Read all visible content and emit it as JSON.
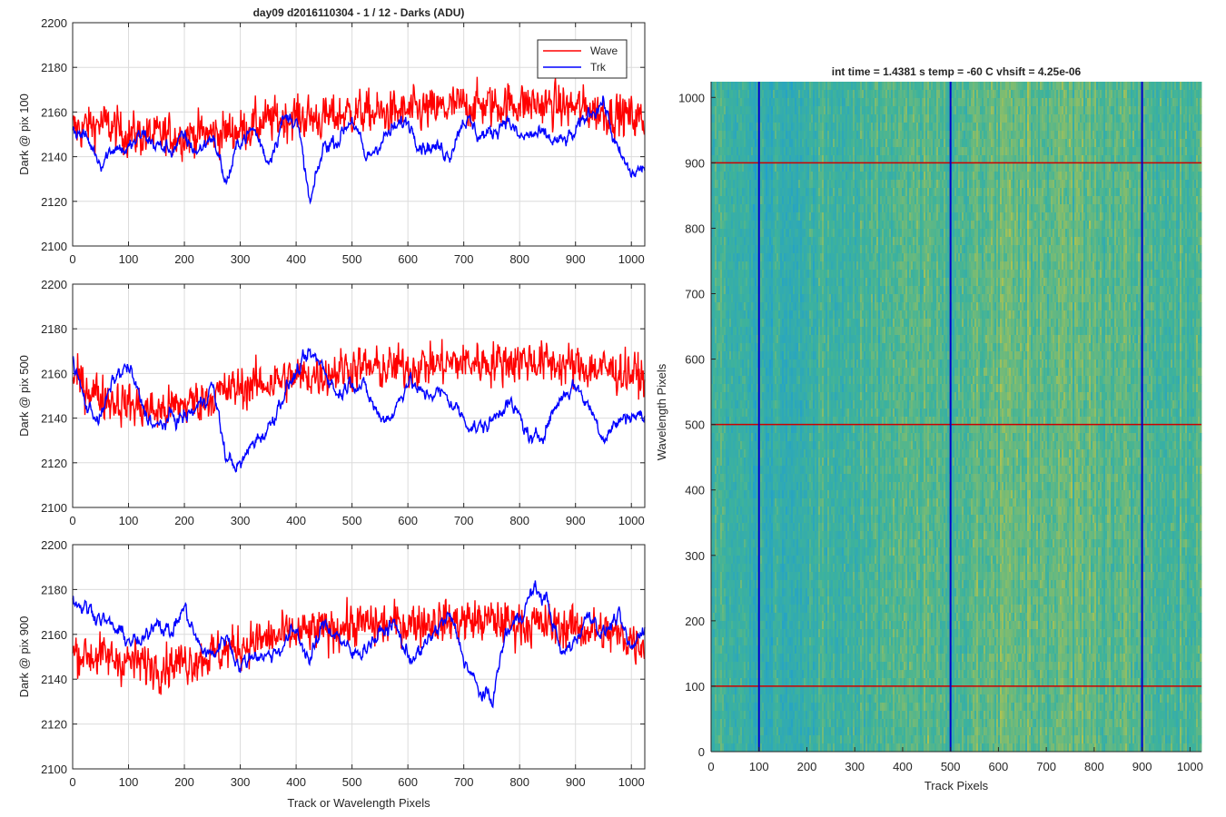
{
  "figure": {
    "title": "day09 d2016110304 - 1 / 12 - Darks (ADU)",
    "legend": {
      "position": "top-right",
      "entries": [
        {
          "name": "Wave",
          "color": "#ff0000"
        },
        {
          "name": "Trk",
          "color": "#0000ff"
        }
      ]
    }
  },
  "chart_data": [
    {
      "type": "line",
      "ylabel": "Dark @ pix 100",
      "xlabel": "",
      "xlim": [
        0,
        1024
      ],
      "ylim": [
        2100,
        2200
      ],
      "xticks": [
        "0",
        "100",
        "200",
        "300",
        "400",
        "500",
        "600",
        "700",
        "800",
        "900",
        "1000"
      ],
      "yticks": [
        "2100",
        "2120",
        "2140",
        "2160",
        "2180",
        "2200"
      ],
      "grid": true,
      "series": [
        {
          "name": "Wave",
          "color": "#ff0000",
          "x": [
            0,
            50,
            100,
            150,
            200,
            250,
            300,
            350,
            400,
            450,
            500,
            550,
            600,
            650,
            700,
            750,
            800,
            850,
            900,
            950,
            1000,
            1024
          ],
          "y": [
            2152,
            2155,
            2150,
            2149,
            2150,
            2150,
            2152,
            2156,
            2158,
            2157,
            2160,
            2159,
            2160,
            2161,
            2163,
            2163,
            2164,
            2163,
            2162,
            2160,
            2158,
            2156
          ]
        },
        {
          "name": "Trk",
          "color": "#0000ff",
          "x": [
            0,
            25,
            50,
            75,
            100,
            125,
            150,
            175,
            200,
            225,
            250,
            275,
            300,
            325,
            350,
            375,
            400,
            425,
            450,
            475,
            500,
            525,
            550,
            575,
            600,
            625,
            650,
            675,
            700,
            725,
            750,
            775,
            800,
            825,
            850,
            875,
            900,
            925,
            950,
            975,
            1000,
            1024
          ],
          "y": [
            2153,
            2148,
            2138,
            2145,
            2143,
            2150,
            2145,
            2143,
            2148,
            2142,
            2150,
            2128,
            2148,
            2152,
            2138,
            2156,
            2158,
            2118,
            2145,
            2148,
            2158,
            2138,
            2147,
            2152,
            2156,
            2146,
            2144,
            2142,
            2158,
            2150,
            2150,
            2158,
            2148,
            2150,
            2148,
            2146,
            2150,
            2160,
            2165,
            2142,
            2132,
            2135
          ]
        }
      ]
    },
    {
      "type": "line",
      "ylabel": "Dark @ pix 500",
      "xlabel": "",
      "xlim": [
        0,
        1024
      ],
      "ylim": [
        2100,
        2200
      ],
      "xticks": [
        "0",
        "100",
        "200",
        "300",
        "400",
        "500",
        "600",
        "700",
        "800",
        "900",
        "1000"
      ],
      "yticks": [
        "2100",
        "2120",
        "2140",
        "2160",
        "2180",
        "2200"
      ],
      "grid": true,
      "series": [
        {
          "name": "Wave",
          "color": "#ff0000",
          "x": [
            0,
            50,
            100,
            150,
            200,
            250,
            300,
            350,
            400,
            450,
            500,
            550,
            600,
            650,
            700,
            750,
            800,
            850,
            900,
            950,
            1000,
            1024
          ],
          "y": [
            2158,
            2150,
            2146,
            2143,
            2146,
            2150,
            2154,
            2156,
            2158,
            2160,
            2163,
            2162,
            2163,
            2164,
            2165,
            2165,
            2166,
            2165,
            2163,
            2162,
            2160,
            2158
          ]
        },
        {
          "name": "Trk",
          "color": "#0000ff",
          "x": [
            0,
            25,
            50,
            75,
            100,
            125,
            150,
            175,
            200,
            225,
            250,
            275,
            300,
            325,
            350,
            375,
            400,
            425,
            450,
            475,
            500,
            525,
            550,
            575,
            600,
            625,
            650,
            675,
            700,
            725,
            750,
            775,
            800,
            825,
            850,
            875,
            900,
            925,
            950,
            975,
            1000,
            1024
          ],
          "y": [
            2165,
            2145,
            2140,
            2158,
            2163,
            2145,
            2135,
            2140,
            2140,
            2145,
            2155,
            2122,
            2118,
            2130,
            2135,
            2150,
            2160,
            2168,
            2163,
            2150,
            2158,
            2152,
            2140,
            2142,
            2158,
            2150,
            2152,
            2148,
            2140,
            2135,
            2138,
            2148,
            2140,
            2128,
            2138,
            2150,
            2155,
            2145,
            2132,
            2138,
            2142,
            2140
          ]
        }
      ]
    },
    {
      "type": "line",
      "ylabel": "Dark @ pix 900",
      "xlabel": "Track or Wavelength Pixels",
      "xlim": [
        0,
        1024
      ],
      "ylim": [
        2100,
        2200
      ],
      "xticks": [
        "0",
        "100",
        "200",
        "300",
        "400",
        "500",
        "600",
        "700",
        "800",
        "900",
        "1000"
      ],
      "yticks": [
        "2100",
        "2120",
        "2140",
        "2160",
        "2180",
        "2200"
      ],
      "grid": true,
      "series": [
        {
          "name": "Wave",
          "color": "#ff0000",
          "x": [
            0,
            50,
            100,
            150,
            200,
            250,
            300,
            350,
            400,
            450,
            500,
            550,
            600,
            650,
            700,
            750,
            800,
            850,
            900,
            950,
            1000,
            1024
          ],
          "y": [
            2152,
            2150,
            2148,
            2146,
            2148,
            2151,
            2155,
            2158,
            2160,
            2162,
            2164,
            2164,
            2165,
            2166,
            2166,
            2166,
            2165,
            2164,
            2163,
            2161,
            2158,
            2156
          ]
        },
        {
          "name": "Trk",
          "color": "#0000ff",
          "x": [
            0,
            25,
            50,
            75,
            100,
            125,
            150,
            175,
            200,
            225,
            250,
            275,
            300,
            325,
            350,
            375,
            400,
            425,
            450,
            475,
            500,
            525,
            550,
            575,
            600,
            625,
            650,
            675,
            700,
            725,
            750,
            775,
            800,
            825,
            850,
            875,
            900,
            925,
            950,
            975,
            1000,
            1024
          ],
          "y": [
            2175,
            2172,
            2168,
            2162,
            2158,
            2155,
            2168,
            2160,
            2172,
            2155,
            2150,
            2160,
            2145,
            2152,
            2150,
            2155,
            2162,
            2148,
            2165,
            2160,
            2150,
            2155,
            2160,
            2165,
            2150,
            2152,
            2162,
            2168,
            2150,
            2135,
            2130,
            2160,
            2168,
            2180,
            2175,
            2150,
            2158,
            2170,
            2160,
            2168,
            2152,
            2165
          ]
        }
      ]
    },
    {
      "type": "heatmap",
      "title": "int time = 1.4381 s    temp = -60 C    vhsift = 4.25e-06",
      "xlabel": "Track Pixels",
      "ylabel": "Wavelength Pixels",
      "xlim": [
        0,
        1024
      ],
      "ylim": [
        0,
        1024
      ],
      "xticks": [
        "0",
        "100",
        "200",
        "300",
        "400",
        "500",
        "600",
        "700",
        "800",
        "900",
        "1000"
      ],
      "yticks": [
        "0",
        "100",
        "200",
        "300",
        "400",
        "500",
        "600",
        "700",
        "800",
        "900",
        "1000"
      ],
      "vertical_lines": [
        100,
        500,
        900
      ],
      "vertical_line_color": "#0000cc",
      "horizontal_lines": [
        100,
        500,
        900
      ],
      "horizontal_line_color": "#cc0000",
      "colors": {
        "low": "#1f9fd0",
        "mid": "#3fb39a",
        "high": "#b8c44a"
      },
      "column_profile": {
        "x": [
          0,
          100,
          200,
          300,
          400,
          500,
          600,
          700,
          800,
          900,
          1000,
          1024
        ],
        "level": [
          0.5,
          0.35,
          0.4,
          0.45,
          0.62,
          0.55,
          0.65,
          0.66,
          0.63,
          0.58,
          0.52,
          0.5
        ]
      }
    }
  ]
}
